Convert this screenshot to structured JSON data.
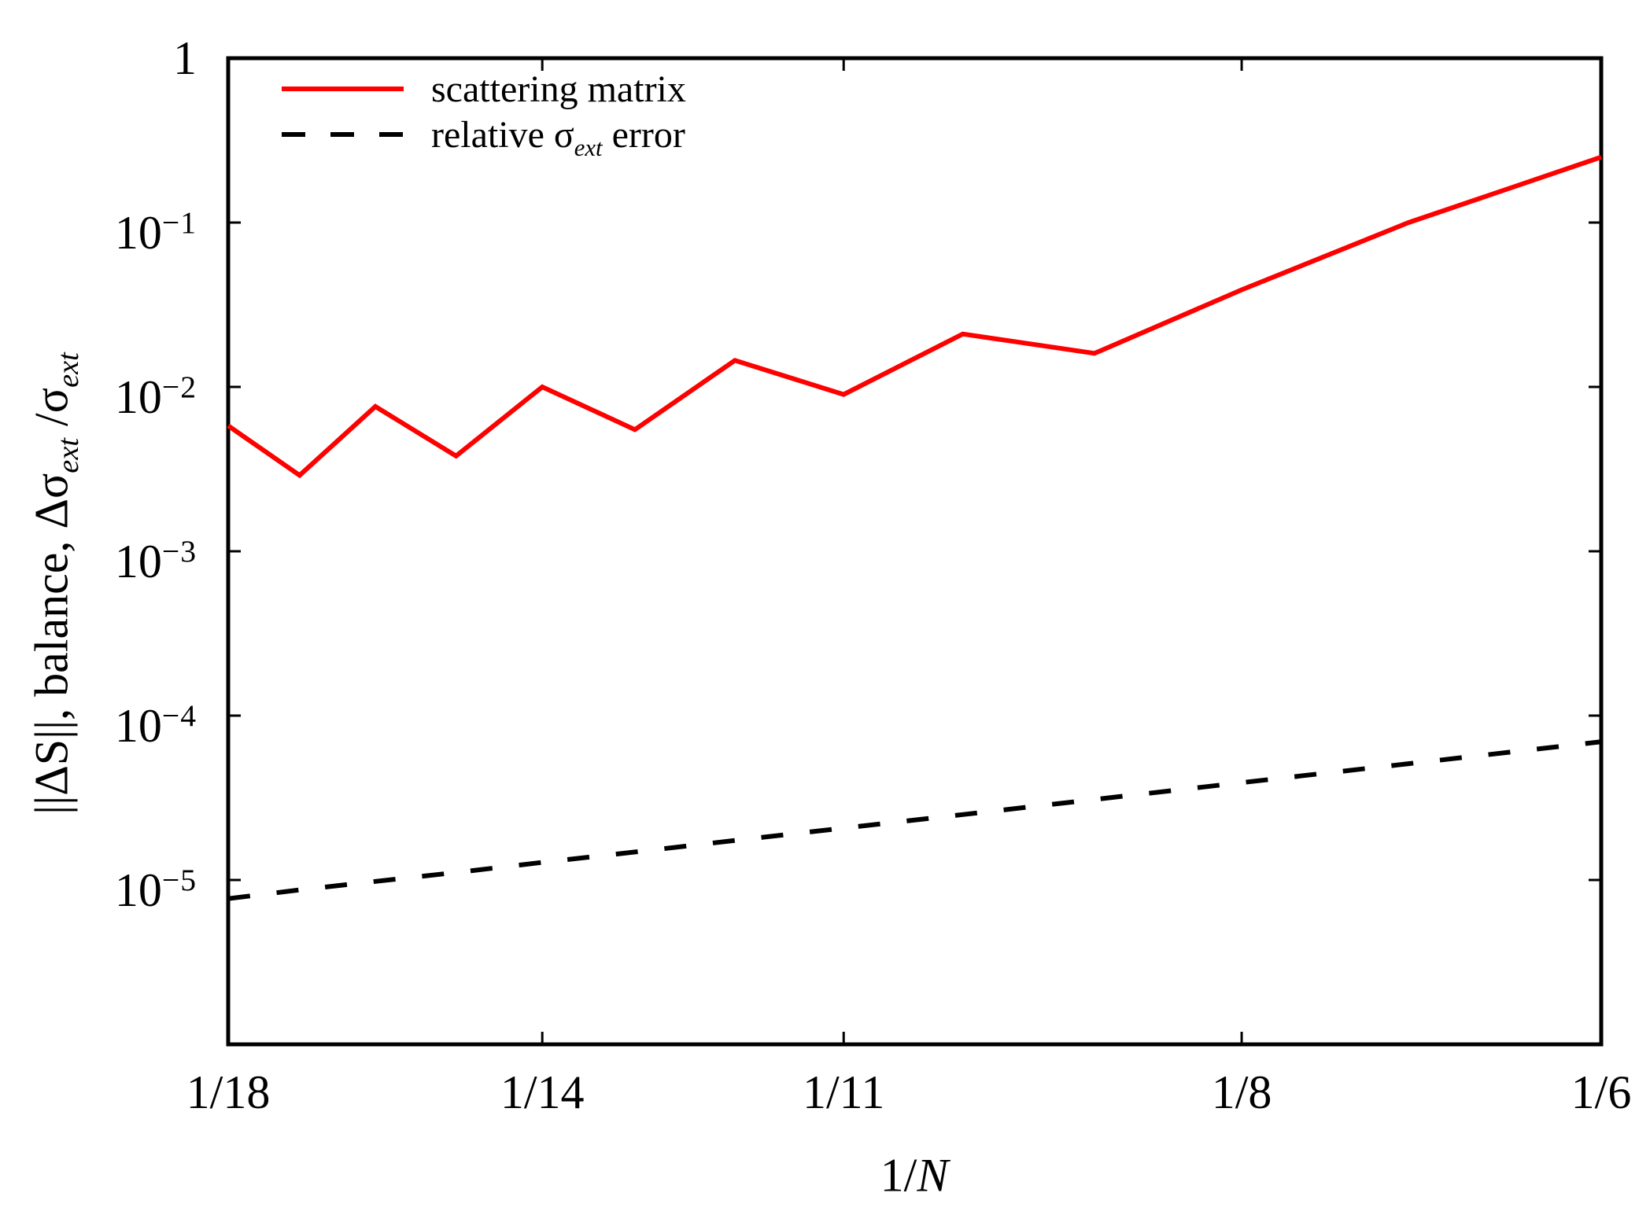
{
  "figure": {
    "background": "#ffffff",
    "axis_color": "#000000"
  },
  "legend": {
    "entries": [
      {
        "name": "scattering matrix",
        "color": "#ff0000",
        "line_style": "solid",
        "label_segments": [
          {
            "t": "scattering matrix"
          }
        ]
      },
      {
        "name": "relative sigma-ext error",
        "color": "#000000",
        "line_style": "dashed",
        "label_segments": [
          {
            "t": "relative σ"
          },
          {
            "t": "ext",
            "sub": true,
            "italic": true
          },
          {
            "t": " error"
          }
        ]
      }
    ]
  },
  "axes": {
    "x": {
      "label_segments": [
        {
          "t": "1/"
        },
        {
          "t": "N",
          "italic": true
        }
      ]
    },
    "y": {
      "label_segments": [
        {
          "t": "||ΔS||, balance, Δσ"
        },
        {
          "t": "ext",
          "sub": true,
          "italic": true
        },
        {
          "t": " /σ"
        },
        {
          "t": "ext",
          "sub": true,
          "italic": true
        }
      ]
    }
  },
  "chart_data": {
    "type": "line",
    "title": "",
    "xlabel": "1/N",
    "ylabel": "||ΔS||, balance, Δσ_ext/σ_ext",
    "x_scale": "log",
    "y_scale": "log",
    "xlim": [
      0.05555556,
      0.16666667
    ],
    "ylim": [
      1e-06,
      1
    ],
    "grid": false,
    "legend_position": "top-left",
    "x_ticks": [
      {
        "v": 0.05555556,
        "label": "1/18"
      },
      {
        "v": 0.07142857,
        "label": "1/14"
      },
      {
        "v": 0.09090909,
        "label": "1/11"
      },
      {
        "v": 0.125,
        "label": "1/8"
      },
      {
        "v": 0.16666667,
        "label": "1/6"
      }
    ],
    "y_ticks": [
      {
        "v": 1,
        "base": "1",
        "exp": ""
      },
      {
        "v": 0.1,
        "base": "10",
        "exp": "−1"
      },
      {
        "v": 0.01,
        "base": "10",
        "exp": "−2"
      },
      {
        "v": 0.001,
        "base": "10",
        "exp": "−3"
      },
      {
        "v": 0.0001,
        "base": "10",
        "exp": "−4"
      },
      {
        "v": 1e-05,
        "base": "10",
        "exp": "−5"
      }
    ],
    "x_N": [
      18,
      17,
      16,
      15,
      14,
      13,
      12,
      11,
      10,
      9,
      8,
      7,
      6
    ],
    "x": [
      0.055556,
      0.058824,
      0.0625,
      0.066667,
      0.071429,
      0.076923,
      0.083333,
      0.090909,
      0.1,
      0.111111,
      0.125,
      0.142857,
      0.166667
    ],
    "series": [
      {
        "name": "scattering matrix",
        "color": "#ff0000",
        "line": "solid",
        "y": [
          0.0058,
          0.0029,
          0.0076,
          0.0038,
          0.01,
          0.0055,
          0.0145,
          0.009,
          0.021,
          0.016,
          0.039,
          0.1,
          0.25
        ]
      },
      {
        "name": "relative σ_ext error",
        "color": "#000000",
        "line": "dashed",
        "y": [
          7.7e-06,
          8.7e-06,
          9.8e-06,
          1.11e-05,
          1.28e-05,
          1.48e-05,
          1.74e-05,
          2.07e-05,
          2.5e-05,
          3.09e-05,
          3.91e-05,
          5.1e-05,
          6.94e-05
        ]
      }
    ]
  }
}
